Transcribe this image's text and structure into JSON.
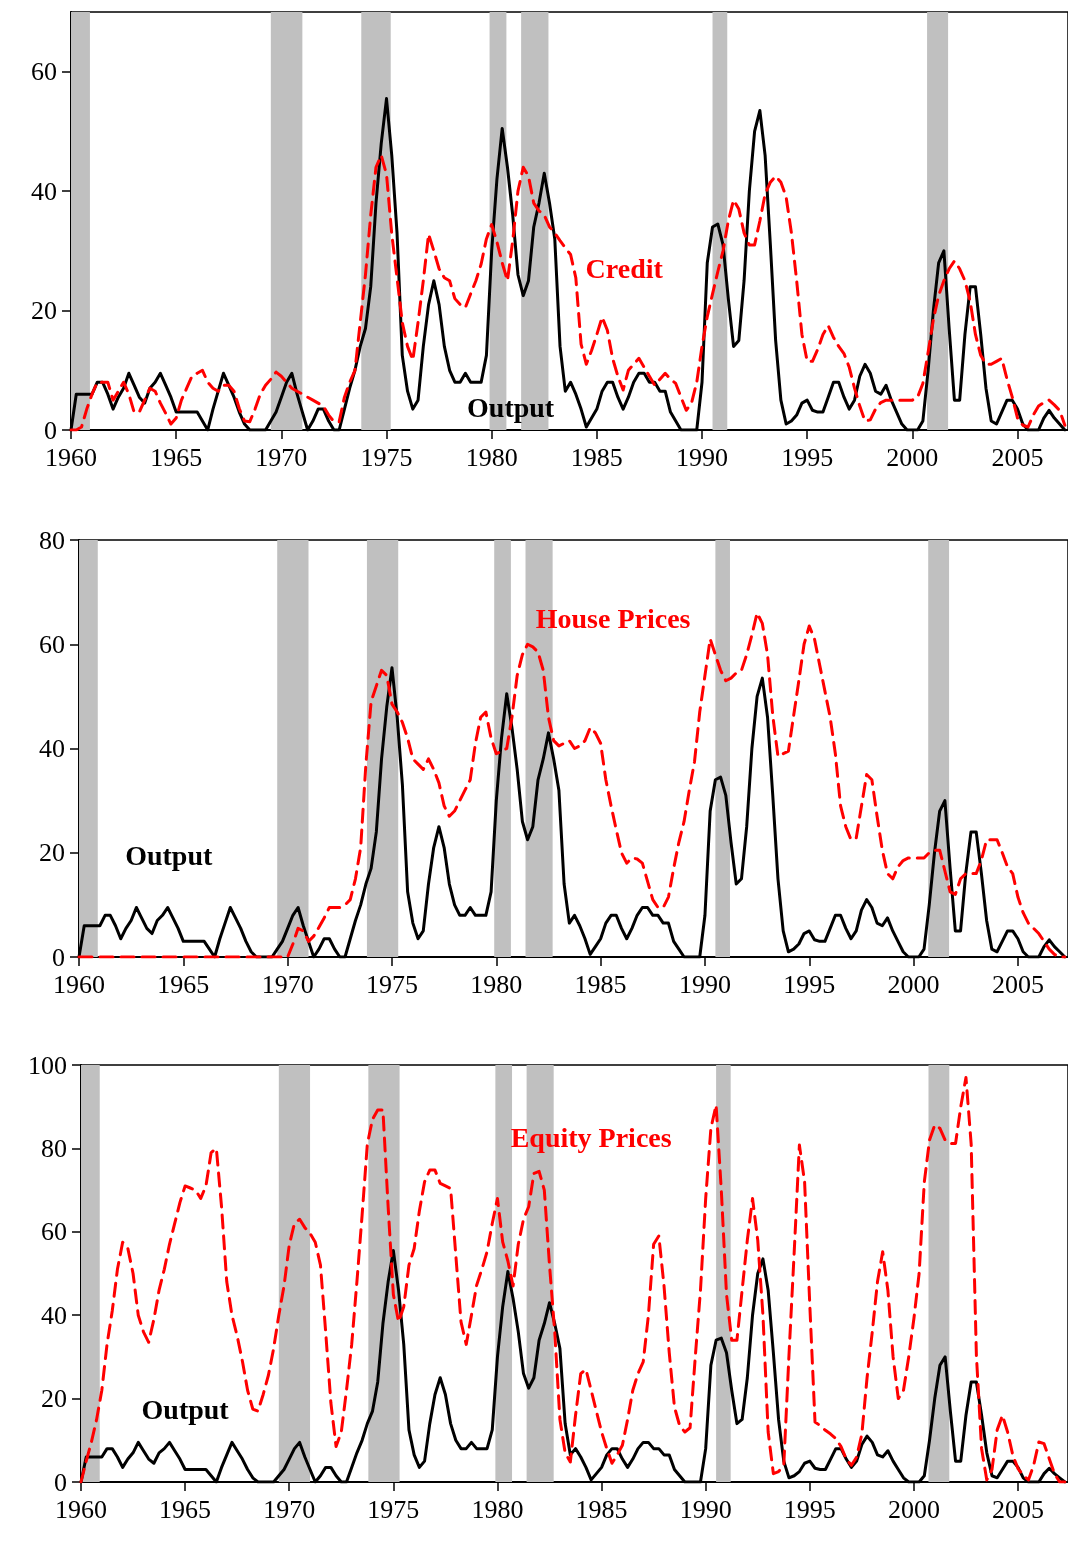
{
  "chart_data": [
    {
      "type": "line",
      "xlim": [
        1960,
        2007.4
      ],
      "xticks": [
        1960,
        1965,
        1970,
        1975,
        1980,
        1985,
        1990,
        1995,
        2000,
        2005
      ],
      "ylim": [
        0,
        70
      ],
      "yticks": [
        0,
        20,
        40,
        60
      ],
      "grid": false,
      "legend": false,
      "marker": "none",
      "x": [
        1960,
        1960.25,
        1960.5,
        1960.75,
        1961,
        1961.25,
        1961.5,
        1961.75,
        1962,
        1962.25,
        1962.5,
        1962.75,
        1963,
        1963.25,
        1963.5,
        1963.75,
        1964,
        1964.25,
        1964.5,
        1964.75,
        1965,
        1965.25,
        1965.5,
        1965.75,
        1966,
        1966.25,
        1966.5,
        1966.75,
        1967,
        1967.25,
        1967.5,
        1967.75,
        1968,
        1968.25,
        1968.5,
        1968.75,
        1969,
        1969.25,
        1969.5,
        1969.75,
        1970,
        1970.25,
        1970.5,
        1970.75,
        1971,
        1971.25,
        1971.5,
        1971.75,
        1972,
        1972.25,
        1972.5,
        1972.75,
        1973,
        1973.25,
        1973.5,
        1973.75,
        1974,
        1974.25,
        1974.5,
        1974.75,
        1975,
        1975.25,
        1975.5,
        1975.75,
        1976,
        1976.25,
        1976.5,
        1976.75,
        1977,
        1977.25,
        1977.5,
        1977.75,
        1978,
        1978.25,
        1978.5,
        1978.75,
        1979,
        1979.25,
        1979.5,
        1979.75,
        1980,
        1980.25,
        1980.5,
        1980.75,
        1981,
        1981.25,
        1981.5,
        1981.75,
        1982,
        1982.25,
        1982.5,
        1982.75,
        1983,
        1983.25,
        1983.5,
        1983.75,
        1984,
        1984.25,
        1984.5,
        1984.75,
        1985,
        1985.25,
        1985.5,
        1985.75,
        1986,
        1986.25,
        1986.5,
        1986.75,
        1987,
        1987.25,
        1987.5,
        1987.75,
        1988,
        1988.25,
        1988.5,
        1988.75,
        1989,
        1989.25,
        1989.5,
        1989.75,
        1990,
        1990.25,
        1990.5,
        1990.75,
        1991,
        1991.25,
        1991.5,
        1991.75,
        1992,
        1992.25,
        1992.5,
        1992.75,
        1993,
        1993.25,
        1993.5,
        1993.75,
        1994,
        1994.25,
        1994.5,
        1994.75,
        1995,
        1995.25,
        1995.5,
        1995.75,
        1996,
        1996.25,
        1996.5,
        1996.75,
        1997,
        1997.25,
        1997.5,
        1997.75,
        1998,
        1998.25,
        1998.5,
        1998.75,
        1999,
        1999.25,
        1999.5,
        1999.75,
        2000,
        2000.25,
        2000.5,
        2000.75,
        2001,
        2001.25,
        2001.5,
        2001.75,
        2002,
        2002.25,
        2002.5,
        2002.75,
        2003,
        2003.25,
        2003.5,
        2003.75,
        2004,
        2004.25,
        2004.5,
        2004.75,
        2005,
        2005.25,
        2005.5,
        2005.75,
        2006,
        2006.25,
        2006.5,
        2006.75,
        2007,
        2007.25
      ],
      "series": [
        {
          "name": "Output",
          "color": "#000000",
          "line_style": "solid",
          "values": [
            0,
            6,
            6,
            6,
            6,
            8,
            8,
            6,
            3.5,
            5.5,
            7,
            9.5,
            7.5,
            5.5,
            4.5,
            7,
            8,
            9.5,
            7.5,
            5.5,
            3,
            3,
            3,
            3,
            3,
            1.5,
            0,
            3.5,
            6.5,
            9.5,
            7.5,
            5.5,
            3,
            1,
            0,
            0,
            0,
            0,
            1.5,
            3,
            5.5,
            8,
            9.5,
            6,
            3,
            0,
            1.5,
            3.5,
            3.5,
            1.5,
            0,
            0,
            3.5,
            7,
            10,
            14,
            17,
            24,
            38,
            48,
            55.5,
            46,
            33,
            12.5,
            6.5,
            3.5,
            5,
            14,
            21,
            25,
            21,
            14,
            10,
            8,
            8,
            9.5,
            8,
            8,
            8,
            12.5,
            30,
            42,
            50.5,
            44,
            36,
            26,
            22.5,
            25,
            34,
            38,
            43,
            38,
            32,
            14,
            6.5,
            8,
            6,
            3.5,
            0.5,
            2,
            3.5,
            6.5,
            8,
            8,
            5.5,
            3.5,
            5.5,
            8,
            9.5,
            9.5,
            8,
            8,
            6.5,
            6.5,
            3,
            1.5,
            0,
            0,
            0,
            0,
            8,
            28,
            34,
            34.5,
            31,
            22,
            14,
            15,
            25,
            40,
            50,
            53.5,
            46,
            31,
            15,
            5,
            1,
            1.5,
            2.5,
            4.5,
            5,
            3.3,
            3,
            3,
            5.5,
            8,
            8,
            5.5,
            3.5,
            5,
            9,
            11,
            9.5,
            6.5,
            6,
            7.5,
            5,
            3,
            1,
            0,
            0,
            0,
            1.5,
            10,
            20,
            28,
            30,
            17,
            5,
            5,
            16,
            24,
            24,
            16,
            7,
            1.5,
            1,
            3,
            5,
            5,
            3.5,
            1,
            0,
            0,
            0,
            2,
            3.3,
            2,
            1,
            0
          ]
        },
        {
          "name": "Credit",
          "color": "#ff0000",
          "line_style": "dashed",
          "values": [
            0,
            0,
            0.5,
            3.5,
            6,
            8,
            8,
            8,
            5,
            6.5,
            8,
            6,
            3,
            3,
            5,
            7,
            6.5,
            4.5,
            2.8,
            1,
            2,
            5,
            7,
            9,
            9.5,
            10,
            8,
            7,
            6.5,
            7.5,
            7.5,
            6.5,
            3.6,
            1.5,
            1.4,
            3.5,
            6,
            7.5,
            8.5,
            9.7,
            9,
            8,
            7,
            6.5,
            6,
            5.5,
            5,
            4.5,
            4,
            2.5,
            1.4,
            1.4,
            5.5,
            8,
            10,
            18,
            26,
            36,
            44,
            46,
            42.8,
            32.8,
            25.5,
            18,
            14,
            11.7,
            18,
            25,
            32.8,
            30,
            27,
            25.5,
            25,
            22,
            21,
            20.5,
            22.8,
            25,
            27.8,
            32,
            34.4,
            31.5,
            28,
            25,
            31.7,
            40,
            44,
            42.5,
            38,
            36.7,
            36,
            34,
            33,
            31.7,
            30.5,
            29.4,
            25.5,
            14.4,
            11,
            13.3,
            16,
            18.9,
            16.7,
            12,
            9,
            6.7,
            10,
            11,
            12,
            10.5,
            9,
            7.5,
            8.5,
            9.5,
            8.5,
            7.8,
            5.5,
            3.3,
            4.5,
            8,
            14,
            19,
            22.8,
            26.5,
            30,
            35,
            38.5,
            37,
            33,
            31,
            31,
            35,
            39.5,
            41.5,
            42.5,
            41.5,
            39,
            33,
            25,
            16,
            11.5,
            11.5,
            13.5,
            16,
            17.5,
            15.5,
            14,
            12.8,
            10.5,
            7,
            4,
            1.5,
            1.7,
            3.5,
            4.6,
            5,
            5,
            5,
            5,
            5,
            5,
            5.5,
            7.8,
            13,
            18.5,
            22.5,
            25,
            27,
            28.3,
            27,
            25,
            21.5,
            16,
            12.5,
            11,
            11,
            11.5,
            12,
            8.5,
            5.5,
            2,
            0.8,
            0.5,
            2.5,
            4,
            4.6,
            5,
            4.2,
            3.3,
            0.8
          ]
        }
      ],
      "bands": [
        {
          "axis": "x",
          "from": 1960,
          "to": 1960.9,
          "color": "#c0c0c0"
        },
        {
          "axis": "x",
          "from": 1969.5,
          "to": 1971,
          "color": "#c0c0c0"
        },
        {
          "axis": "x",
          "from": 1973.8,
          "to": 1975.2,
          "color": "#c0c0c0"
        },
        {
          "axis": "x",
          "from": 1979.9,
          "to": 1980.7,
          "color": "#c0c0c0"
        },
        {
          "axis": "x",
          "from": 1981.4,
          "to": 1982.7,
          "color": "#c0c0c0"
        },
        {
          "axis": "x",
          "from": 1990.5,
          "to": 1991.2,
          "color": "#c0c0c0"
        },
        {
          "axis": "x",
          "from": 2000.7,
          "to": 2001.7,
          "color": "#c0c0c0"
        }
      ]
    },
    {
      "type": "line",
      "xlim": [
        1960,
        2007.4
      ],
      "xticks": [
        1960,
        1965,
        1970,
        1975,
        1980,
        1985,
        1990,
        1995,
        2000,
        2005
      ],
      "ylim": [
        0,
        80
      ],
      "yticks": [
        0,
        20,
        40,
        60,
        80
      ],
      "grid": false,
      "legend": false,
      "marker": "none",
      "x": [
        1960,
        1960.25,
        1960.5,
        1960.75,
        1961,
        1961.25,
        1961.5,
        1961.75,
        1962,
        1962.25,
        1962.5,
        1962.75,
        1963,
        1963.25,
        1963.5,
        1963.75,
        1964,
        1964.25,
        1964.5,
        1964.75,
        1965,
        1965.25,
        1965.5,
        1965.75,
        1966,
        1966.25,
        1966.5,
        1966.75,
        1967,
        1967.25,
        1967.5,
        1967.75,
        1968,
        1968.25,
        1968.5,
        1968.75,
        1969,
        1969.25,
        1969.5,
        1969.75,
        1970,
        1970.25,
        1970.5,
        1970.75,
        1971,
        1971.25,
        1971.5,
        1971.75,
        1972,
        1972.25,
        1972.5,
        1972.75,
        1973,
        1973.25,
        1973.5,
        1973.75,
        1974,
        1974.25,
        1974.5,
        1974.75,
        1975,
        1975.25,
        1975.5,
        1975.75,
        1976,
        1976.25,
        1976.5,
        1976.75,
        1977,
        1977.25,
        1977.5,
        1977.75,
        1978,
        1978.25,
        1978.5,
        1978.75,
        1979,
        1979.25,
        1979.5,
        1979.75,
        1980,
        1980.25,
        1980.5,
        1980.75,
        1981,
        1981.25,
        1981.5,
        1981.75,
        1982,
        1982.25,
        1982.5,
        1982.75,
        1983,
        1983.25,
        1983.5,
        1983.75,
        1984,
        1984.25,
        1984.5,
        1984.75,
        1985,
        1985.25,
        1985.5,
        1985.75,
        1986,
        1986.25,
        1986.5,
        1986.75,
        1987,
        1987.25,
        1987.5,
        1987.75,
        1988,
        1988.25,
        1988.5,
        1988.75,
        1989,
        1989.25,
        1989.5,
        1989.75,
        1990,
        1990.25,
        1990.5,
        1990.75,
        1991,
        1991.25,
        1991.5,
        1991.75,
        1992,
        1992.25,
        1992.5,
        1992.75,
        1993,
        1993.25,
        1993.5,
        1993.75,
        1994,
        1994.25,
        1994.5,
        1994.75,
        1995,
        1995.25,
        1995.5,
        1995.75,
        1996,
        1996.25,
        1996.5,
        1996.75,
        1997,
        1997.25,
        1997.5,
        1997.75,
        1998,
        1998.25,
        1998.5,
        1998.75,
        1999,
        1999.25,
        1999.5,
        1999.75,
        2000,
        2000.25,
        2000.5,
        2000.75,
        2001,
        2001.25,
        2001.5,
        2001.75,
        2002,
        2002.25,
        2002.5,
        2002.75,
        2003,
        2003.25,
        2003.5,
        2003.75,
        2004,
        2004.25,
        2004.5,
        2004.75,
        2005,
        2005.25,
        2005.5,
        2005.75,
        2006,
        2006.25,
        2006.5,
        2006.75,
        2007,
        2007.25
      ],
      "series": [
        {
          "name": "Output",
          "color": "#000000",
          "line_style": "solid",
          "values": [
            0,
            6,
            6,
            6,
            6,
            8,
            8,
            6,
            3.5,
            5.5,
            7,
            9.5,
            7.5,
            5.5,
            4.5,
            7,
            8,
            9.5,
            7.5,
            5.5,
            3,
            3,
            3,
            3,
            3,
            1.5,
            0,
            3.5,
            6.5,
            9.5,
            7.5,
            5.5,
            3,
            1,
            0,
            0,
            0,
            0,
            1.5,
            3,
            5.5,
            8,
            9.5,
            6,
            3,
            0,
            1.5,
            3.5,
            3.5,
            1.5,
            0,
            0,
            3.5,
            7,
            10,
            14,
            17,
            24,
            38,
            48,
            55.5,
            46,
            33,
            12.5,
            6.5,
            3.5,
            5,
            14,
            21,
            25,
            21,
            14,
            10,
            8,
            8,
            9.5,
            8,
            8,
            8,
            12.5,
            30,
            42,
            50.5,
            44,
            36,
            26,
            22.5,
            25,
            34,
            38,
            43,
            38,
            32,
            14,
            6.5,
            8,
            6,
            3.5,
            0.5,
            2,
            3.5,
            6.5,
            8,
            8,
            5.5,
            3.5,
            5.5,
            8,
            9.5,
            9.5,
            8,
            8,
            6.5,
            6.5,
            3,
            1.5,
            0,
            0,
            0,
            0,
            8,
            28,
            34,
            34.5,
            31,
            22,
            14,
            15,
            25,
            40,
            50,
            53.5,
            46,
            31,
            15,
            5,
            1,
            1.5,
            2.5,
            4.5,
            5,
            3.3,
            3,
            3,
            5.5,
            8,
            8,
            5.5,
            3.5,
            5,
            9,
            11,
            9.5,
            6.5,
            6,
            7.5,
            5,
            3,
            1,
            0,
            0,
            0,
            1.5,
            10,
            20,
            28,
            30,
            17,
            5,
            5,
            16,
            24,
            24,
            16,
            7,
            1.5,
            1,
            3,
            5,
            5,
            3.5,
            1,
            0,
            0,
            0,
            2,
            3.3,
            2,
            1,
            0
          ]
        },
        {
          "name": "House Prices",
          "color": "#ff0000",
          "line_style": "dashed",
          "values": [
            0,
            0,
            0,
            0,
            0,
            0,
            0,
            0,
            0,
            0,
            0,
            0,
            0,
            0,
            0,
            0,
            0,
            0,
            0,
            0,
            0,
            0,
            0,
            0,
            0,
            0,
            0,
            0,
            0,
            0,
            0,
            0,
            0,
            0,
            0,
            0,
            0,
            0,
            0,
            0,
            0,
            2.5,
            5.5,
            5,
            3,
            4,
            5.7,
            7.5,
            9.5,
            9.5,
            9.5,
            10,
            11,
            15,
            21,
            37,
            49,
            52,
            55,
            54,
            48.5,
            47,
            45,
            42,
            38,
            37,
            36,
            38,
            36,
            33.4,
            29,
            27,
            28,
            30,
            32,
            34,
            41,
            46,
            47,
            42,
            39,
            39.5,
            40,
            46,
            54,
            58,
            60,
            59.5,
            58.5,
            55,
            46,
            41.5,
            40.5,
            41,
            41.5,
            40,
            40.5,
            41.5,
            44,
            43,
            41,
            34,
            29,
            24.4,
            20,
            18,
            19,
            18.8,
            18,
            14.5,
            11,
            9.5,
            9.5,
            11.5,
            17,
            22,
            26,
            32,
            37.5,
            47,
            54,
            61,
            58,
            55,
            53,
            53.5,
            54.5,
            55,
            58,
            61.8,
            66,
            64,
            58,
            46.3,
            38.5,
            39,
            39.5,
            46.3,
            53,
            60,
            63.5,
            61,
            56,
            51,
            46,
            39,
            29,
            25,
            22.5,
            22.8,
            28.9,
            35,
            34,
            27,
            20.5,
            16,
            15,
            17.3,
            18.5,
            19,
            19,
            19,
            19,
            20,
            20.5,
            20.5,
            16.5,
            12.5,
            12,
            15,
            16,
            16,
            16,
            18.6,
            22.5,
            22.5,
            22.5,
            20,
            17.3,
            16,
            11.5,
            8.5,
            6.5,
            5.5,
            4.5,
            3,
            1.5,
            0.5,
            0,
            0
          ]
        }
      ],
      "bands": [
        {
          "axis": "x",
          "from": 1960,
          "to": 1960.9,
          "color": "#c0c0c0"
        },
        {
          "axis": "x",
          "from": 1969.5,
          "to": 1971,
          "color": "#c0c0c0"
        },
        {
          "axis": "x",
          "from": 1973.8,
          "to": 1975.3,
          "color": "#c0c0c0"
        },
        {
          "axis": "x",
          "from": 1979.9,
          "to": 1980.7,
          "color": "#c0c0c0"
        },
        {
          "axis": "x",
          "from": 1981.4,
          "to": 1982.7,
          "color": "#c0c0c0"
        },
        {
          "axis": "x",
          "from": 1990.5,
          "to": 1991.2,
          "color": "#c0c0c0"
        },
        {
          "axis": "x",
          "from": 2000.7,
          "to": 2001.7,
          "color": "#c0c0c0"
        }
      ]
    },
    {
      "type": "line",
      "xlim": [
        1960,
        2007.4
      ],
      "xticks": [
        1960,
        1965,
        1970,
        1975,
        1980,
        1985,
        1990,
        1995,
        2000,
        2005
      ],
      "ylim": [
        0,
        100
      ],
      "yticks": [
        0,
        20,
        40,
        60,
        80,
        100
      ],
      "grid": false,
      "legend": false,
      "marker": "none",
      "x": [
        1960,
        1960.25,
        1960.5,
        1960.75,
        1961,
        1961.25,
        1961.5,
        1961.75,
        1962,
        1962.25,
        1962.5,
        1962.75,
        1963,
        1963.25,
        1963.5,
        1963.75,
        1964,
        1964.25,
        1964.5,
        1964.75,
        1965,
        1965.25,
        1965.5,
        1965.75,
        1966,
        1966.25,
        1966.5,
        1966.75,
        1967,
        1967.25,
        1967.5,
        1967.75,
        1968,
        1968.25,
        1968.5,
        1968.75,
        1969,
        1969.25,
        1969.5,
        1969.75,
        1970,
        1970.25,
        1970.5,
        1970.75,
        1971,
        1971.25,
        1971.5,
        1971.75,
        1972,
        1972.25,
        1972.5,
        1972.75,
        1973,
        1973.25,
        1973.5,
        1973.75,
        1974,
        1974.25,
        1974.5,
        1974.75,
        1975,
        1975.25,
        1975.5,
        1975.75,
        1976,
        1976.25,
        1976.5,
        1976.75,
        1977,
        1977.25,
        1977.5,
        1977.75,
        1978,
        1978.25,
        1978.5,
        1978.75,
        1979,
        1979.25,
        1979.5,
        1979.75,
        1980,
        1980.25,
        1980.5,
        1980.75,
        1981,
        1981.25,
        1981.5,
        1981.75,
        1982,
        1982.25,
        1982.5,
        1982.75,
        1983,
        1983.25,
        1983.5,
        1983.75,
        1984,
        1984.25,
        1984.5,
        1984.75,
        1985,
        1985.25,
        1985.5,
        1985.75,
        1986,
        1986.25,
        1986.5,
        1986.75,
        1987,
        1987.25,
        1987.5,
        1987.75,
        1988,
        1988.25,
        1988.5,
        1988.75,
        1989,
        1989.25,
        1989.5,
        1989.75,
        1990,
        1990.25,
        1990.5,
        1990.75,
        1991,
        1991.25,
        1991.5,
        1991.75,
        1992,
        1992.25,
        1992.5,
        1992.75,
        1993,
        1993.25,
        1993.5,
        1993.75,
        1994,
        1994.25,
        1994.5,
        1994.75,
        1995,
        1995.25,
        1995.5,
        1995.75,
        1996,
        1996.25,
        1996.5,
        1996.75,
        1997,
        1997.25,
        1997.5,
        1997.75,
        1998,
        1998.25,
        1998.5,
        1998.75,
        1999,
        1999.25,
        1999.5,
        1999.75,
        2000,
        2000.25,
        2000.5,
        2000.75,
        2001,
        2001.25,
        2001.5,
        2001.75,
        2002,
        2002.25,
        2002.5,
        2002.75,
        2003,
        2003.25,
        2003.5,
        2003.75,
        2004,
        2004.25,
        2004.5,
        2004.75,
        2005,
        2005.25,
        2005.5,
        2005.75,
        2006,
        2006.25,
        2006.5,
        2006.75,
        2007,
        2007.25
      ],
      "series": [
        {
          "name": "Output",
          "color": "#000000",
          "line_style": "solid",
          "values": [
            0,
            6,
            6,
            6,
            6,
            8,
            8,
            6,
            3.5,
            5.5,
            7,
            9.5,
            7.5,
            5.5,
            4.5,
            7,
            8,
            9.5,
            7.5,
            5.5,
            3,
            3,
            3,
            3,
            3,
            1.5,
            0,
            3.5,
            6.5,
            9.5,
            7.5,
            5.5,
            3,
            1,
            0,
            0,
            0,
            0,
            1.5,
            3,
            5.5,
            8,
            9.5,
            6,
            3,
            0,
            1.5,
            3.5,
            3.5,
            1.5,
            0,
            0,
            3.5,
            7,
            10,
            14,
            17,
            24,
            38,
            48,
            55.5,
            46,
            33,
            12.5,
            6.5,
            3.5,
            5,
            14,
            21,
            25,
            21,
            14,
            10,
            8,
            8,
            9.5,
            8,
            8,
            8,
            12.5,
            30,
            42,
            50.5,
            44,
            36,
            26,
            22.5,
            25,
            34,
            38,
            43,
            38,
            32,
            14,
            6.5,
            8,
            6,
            3.5,
            0.5,
            2,
            3.5,
            6.5,
            8,
            8,
            5.5,
            3.5,
            5.5,
            8,
            9.5,
            9.5,
            8,
            8,
            6.5,
            6.5,
            3,
            1.5,
            0,
            0,
            0,
            0,
            8,
            28,
            34,
            34.5,
            31,
            22,
            14,
            15,
            25,
            40,
            50,
            53.5,
            46,
            31,
            15,
            5,
            1,
            1.5,
            2.5,
            4.5,
            5,
            3.3,
            3,
            3,
            5.5,
            8,
            8,
            5.5,
            3.5,
            5,
            9,
            11,
            9.5,
            6.5,
            6,
            7.5,
            5,
            3,
            1,
            0,
            0,
            0,
            1.5,
            10,
            20,
            28,
            30,
            17,
            5,
            5,
            16,
            24,
            24,
            16,
            7,
            1.5,
            1,
            3,
            5,
            5,
            3.5,
            1,
            0,
            0,
            0,
            2,
            3.3,
            2,
            1,
            0
          ]
        },
        {
          "name": "Equity Prices",
          "color": "#ff0000",
          "line_style": "dashed",
          "values": [
            0,
            5,
            9.6,
            15,
            22,
            33,
            41,
            51,
            57.5,
            56,
            50,
            40,
            36,
            33.5,
            39,
            46,
            51,
            57,
            62,
            67,
            71,
            70.5,
            70,
            68,
            71,
            79,
            80,
            66,
            48,
            40,
            35,
            29,
            22,
            17.5,
            17,
            21,
            25.6,
            32,
            40,
            47,
            56.8,
            62,
            63,
            61,
            59.6,
            57.5,
            52,
            36,
            19,
            8.5,
            12,
            22,
            33,
            48,
            64,
            81,
            87,
            89.2,
            89.2,
            66,
            45,
            38.4,
            42,
            52,
            56,
            65,
            72,
            74.8,
            74.8,
            71.6,
            71,
            70.4,
            54.4,
            38.4,
            33,
            40,
            47.2,
            51,
            55.2,
            62,
            68,
            57.6,
            53,
            47,
            57,
            63,
            66,
            74,
            74.5,
            70,
            52,
            36,
            15,
            7,
            4.8,
            16,
            26,
            27,
            22,
            17,
            12,
            8,
            4.5,
            6.5,
            8.8,
            15,
            22,
            26,
            28.8,
            40,
            57,
            59,
            47,
            31,
            18,
            13.5,
            12,
            13,
            30,
            46,
            68,
            84.8,
            90.4,
            70,
            45,
            34,
            34,
            46,
            58,
            68,
            58,
            40,
            12,
            2,
            2.5,
            4,
            30.4,
            55,
            80.8,
            72,
            42.4,
            14.4,
            13.5,
            12.4,
            11.5,
            10.4,
            8.5,
            5.5,
            4,
            6,
            11.5,
            25,
            36,
            48,
            55.2,
            46,
            30,
            20,
            22,
            30,
            39.2,
            50,
            72,
            82,
            85.6,
            84.8,
            82,
            81.2,
            81.2,
            90,
            97,
            81,
            30.4,
            8,
            0.5,
            3,
            12.5,
            16,
            12,
            6.4,
            3.2,
            1.6,
            0.5,
            4,
            9.6,
            9.2,
            5.6,
            2,
            0,
            0
          ]
        }
      ],
      "bands": [
        {
          "axis": "x",
          "from": 1960,
          "to": 1960.9,
          "color": "#c0c0c0"
        },
        {
          "axis": "x",
          "from": 1969.5,
          "to": 1971,
          "color": "#c0c0c0"
        },
        {
          "axis": "x",
          "from": 1973.8,
          "to": 1975.3,
          "color": "#c0c0c0"
        },
        {
          "axis": "x",
          "from": 1979.9,
          "to": 1980.7,
          "color": "#c0c0c0"
        },
        {
          "axis": "x",
          "from": 1981.4,
          "to": 1982.7,
          "color": "#c0c0c0"
        },
        {
          "axis": "x",
          "from": 1990.5,
          "to": 1991.2,
          "color": "#c0c0c0"
        },
        {
          "axis": "x",
          "from": 2000.7,
          "to": 2001.7,
          "color": "#c0c0c0"
        }
      ]
    }
  ]
}
